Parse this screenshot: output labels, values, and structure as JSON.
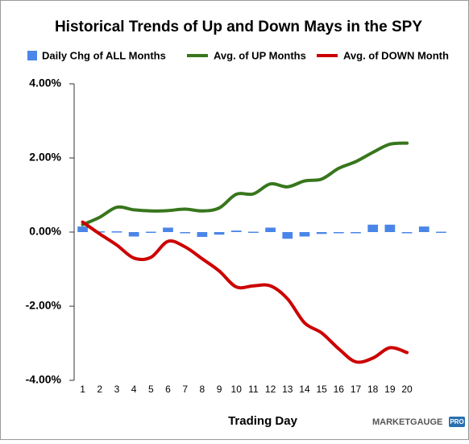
{
  "chart_data": {
    "type": "bar_line",
    "title": "Historical Trends of Up and Down Mays in the SPY",
    "x_label": "Trading Day",
    "watermark": "MARKETGAUGE",
    "watermark_badge": "PRO",
    "categories": [
      "1",
      "2",
      "3",
      "4",
      "5",
      "6",
      "7",
      "8",
      "9",
      "10",
      "11",
      "12",
      "13",
      "14",
      "15",
      "16",
      "17",
      "18",
      "19",
      "20",
      null,
      null
    ],
    "series": [
      {
        "name": "Daily Chg of ALL Months",
        "kind": "bar",
        "color": "#4a86e8",
        "values": [
          0.15,
          0.02,
          0.02,
          -0.12,
          0.01,
          0.12,
          0,
          -0.13,
          -0.07,
          0.04,
          0.01,
          0.12,
          -0.18,
          -0.12,
          -0.05,
          0,
          -0.01,
          0.2,
          0.2,
          -0.02,
          0.15,
          0.01
        ]
      },
      {
        "name": "Avg. of UP Months",
        "kind": "line",
        "color": "#38761d",
        "values": [
          0.2,
          0.4,
          0.67,
          0.6,
          0.57,
          0.58,
          0.62,
          0.57,
          0.65,
          1.02,
          1.03,
          1.3,
          1.22,
          1.38,
          1.43,
          1.72,
          1.9,
          2.15,
          2.37,
          2.4,
          null,
          null
        ]
      },
      {
        "name": "Avg. of DOWN Month",
        "kind": "line",
        "color": "#cc0000",
        "values": [
          0.27,
          -0.05,
          -0.35,
          -0.7,
          -0.68,
          -0.25,
          -0.4,
          -0.72,
          -1.05,
          -1.48,
          -1.45,
          -1.45,
          -1.8,
          -2.45,
          -2.72,
          -3.15,
          -3.5,
          -3.4,
          -3.12,
          -3.25,
          null,
          null
        ]
      }
    ],
    "ylim": [
      -4,
      4
    ],
    "yticks": [
      {
        "value": -4,
        "label": "-4.00%"
      },
      {
        "value": -2,
        "label": "-2.00%"
      },
      {
        "value": 0,
        "label": "0.00%"
      },
      {
        "value": 2,
        "label": "2.00%"
      },
      {
        "value": 4,
        "label": "4.00%"
      }
    ],
    "grid": false,
    "legend": "top"
  }
}
